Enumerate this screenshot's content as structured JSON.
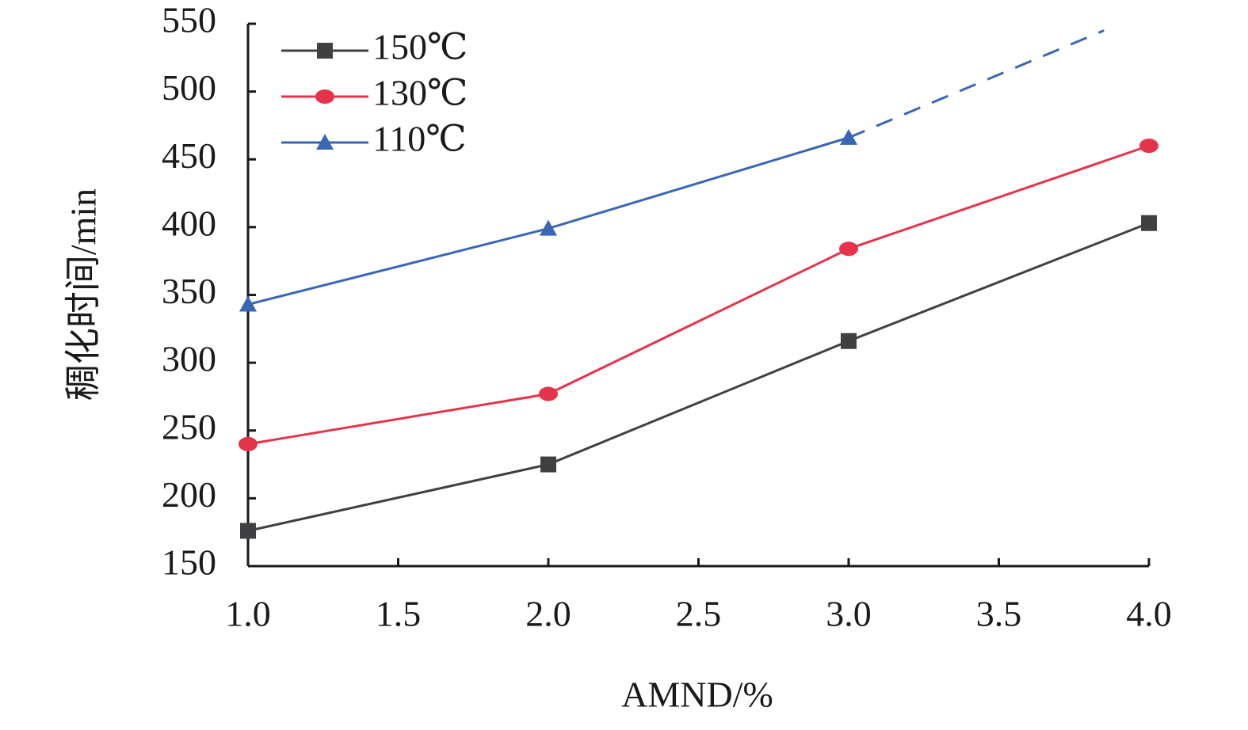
{
  "chart_data": {
    "type": "line",
    "x_label": "AMND/%",
    "y_label": "稠化时间/min",
    "x": [
      1,
      2,
      3,
      4
    ],
    "series": [
      {
        "name": "150℃",
        "color": "#404042",
        "marker": "square",
        "values": [
          176,
          225,
          316,
          403
        ]
      },
      {
        "name": "130℃",
        "color": "#e5334b",
        "marker": "circle",
        "values": [
          240,
          277,
          384,
          460
        ]
      },
      {
        "name": "110℃",
        "color": "#3a66b6",
        "marker": "triangle",
        "values": [
          343,
          399,
          466,
          null
        ],
        "extrapolation": {
          "x": [
            3,
            3.85
          ],
          "values": [
            466,
            545
          ]
        }
      }
    ],
    "xlim": [
      1,
      4
    ],
    "xticks": [
      {
        "value": 1,
        "label": "1.0"
      },
      1.5,
      {
        "value": 2,
        "label": "2.0"
      },
      2.5,
      {
        "value": 3,
        "label": "3.0"
      },
      3.5,
      {
        "value": 4,
        "label": "4.0"
      }
    ],
    "ylim": [
      150,
      550
    ],
    "yticks": [
      150,
      200,
      250,
      300,
      350,
      400,
      450,
      500,
      550
    ],
    "grid": false,
    "legend": "upper left"
  }
}
